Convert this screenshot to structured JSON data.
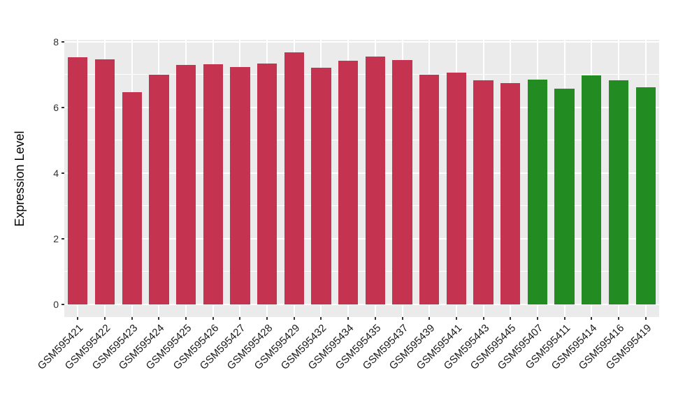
{
  "figure": {
    "background": "#FFFFFF"
  },
  "chart_data": {
    "type": "bar",
    "title": "",
    "xlabel": "",
    "ylabel": "Expression Level",
    "ylim": [
      0,
      8
    ],
    "yticks_major": [
      0,
      2,
      4,
      6,
      8
    ],
    "yticks_minor": [
      1,
      3,
      5,
      7
    ],
    "grid": "white major and minor gridlines on grey panel",
    "legend_position": "none",
    "panel_background": "#EBEBEB",
    "gridline_color": "#FFFFFF",
    "axis_text_color": "#303030",
    "bar_group_colors": {
      "red": "#C43350",
      "green": "#228B22"
    },
    "bars": [
      {
        "label": "GSM595421",
        "value": 7.53,
        "group": "red"
      },
      {
        "label": "GSM595422",
        "value": 7.47,
        "group": "red"
      },
      {
        "label": "GSM595423",
        "value": 6.47,
        "group": "red"
      },
      {
        "label": "GSM595424",
        "value": 7.0,
        "group": "red"
      },
      {
        "label": "GSM595425",
        "value": 7.29,
        "group": "red"
      },
      {
        "label": "GSM595426",
        "value": 7.32,
        "group": "red"
      },
      {
        "label": "GSM595427",
        "value": 7.22,
        "group": "red"
      },
      {
        "label": "GSM595428",
        "value": 7.34,
        "group": "red"
      },
      {
        "label": "GSM595429",
        "value": 7.68,
        "group": "red"
      },
      {
        "label": "GSM595432",
        "value": 7.2,
        "group": "red"
      },
      {
        "label": "GSM595434",
        "value": 7.42,
        "group": "red"
      },
      {
        "label": "GSM595435",
        "value": 7.54,
        "group": "red"
      },
      {
        "label": "GSM595437",
        "value": 7.45,
        "group": "red"
      },
      {
        "label": "GSM595439",
        "value": 6.99,
        "group": "red"
      },
      {
        "label": "GSM595441",
        "value": 7.06,
        "group": "red"
      },
      {
        "label": "GSM595443",
        "value": 6.82,
        "group": "red"
      },
      {
        "label": "GSM595445",
        "value": 6.74,
        "group": "red"
      },
      {
        "label": "GSM595407",
        "value": 6.84,
        "group": "green"
      },
      {
        "label": "GSM595411",
        "value": 6.57,
        "group": "green"
      },
      {
        "label": "GSM595414",
        "value": 6.97,
        "group": "green"
      },
      {
        "label": "GSM595416",
        "value": 6.82,
        "group": "green"
      },
      {
        "label": "GSM595419",
        "value": 6.61,
        "group": "green"
      }
    ]
  }
}
